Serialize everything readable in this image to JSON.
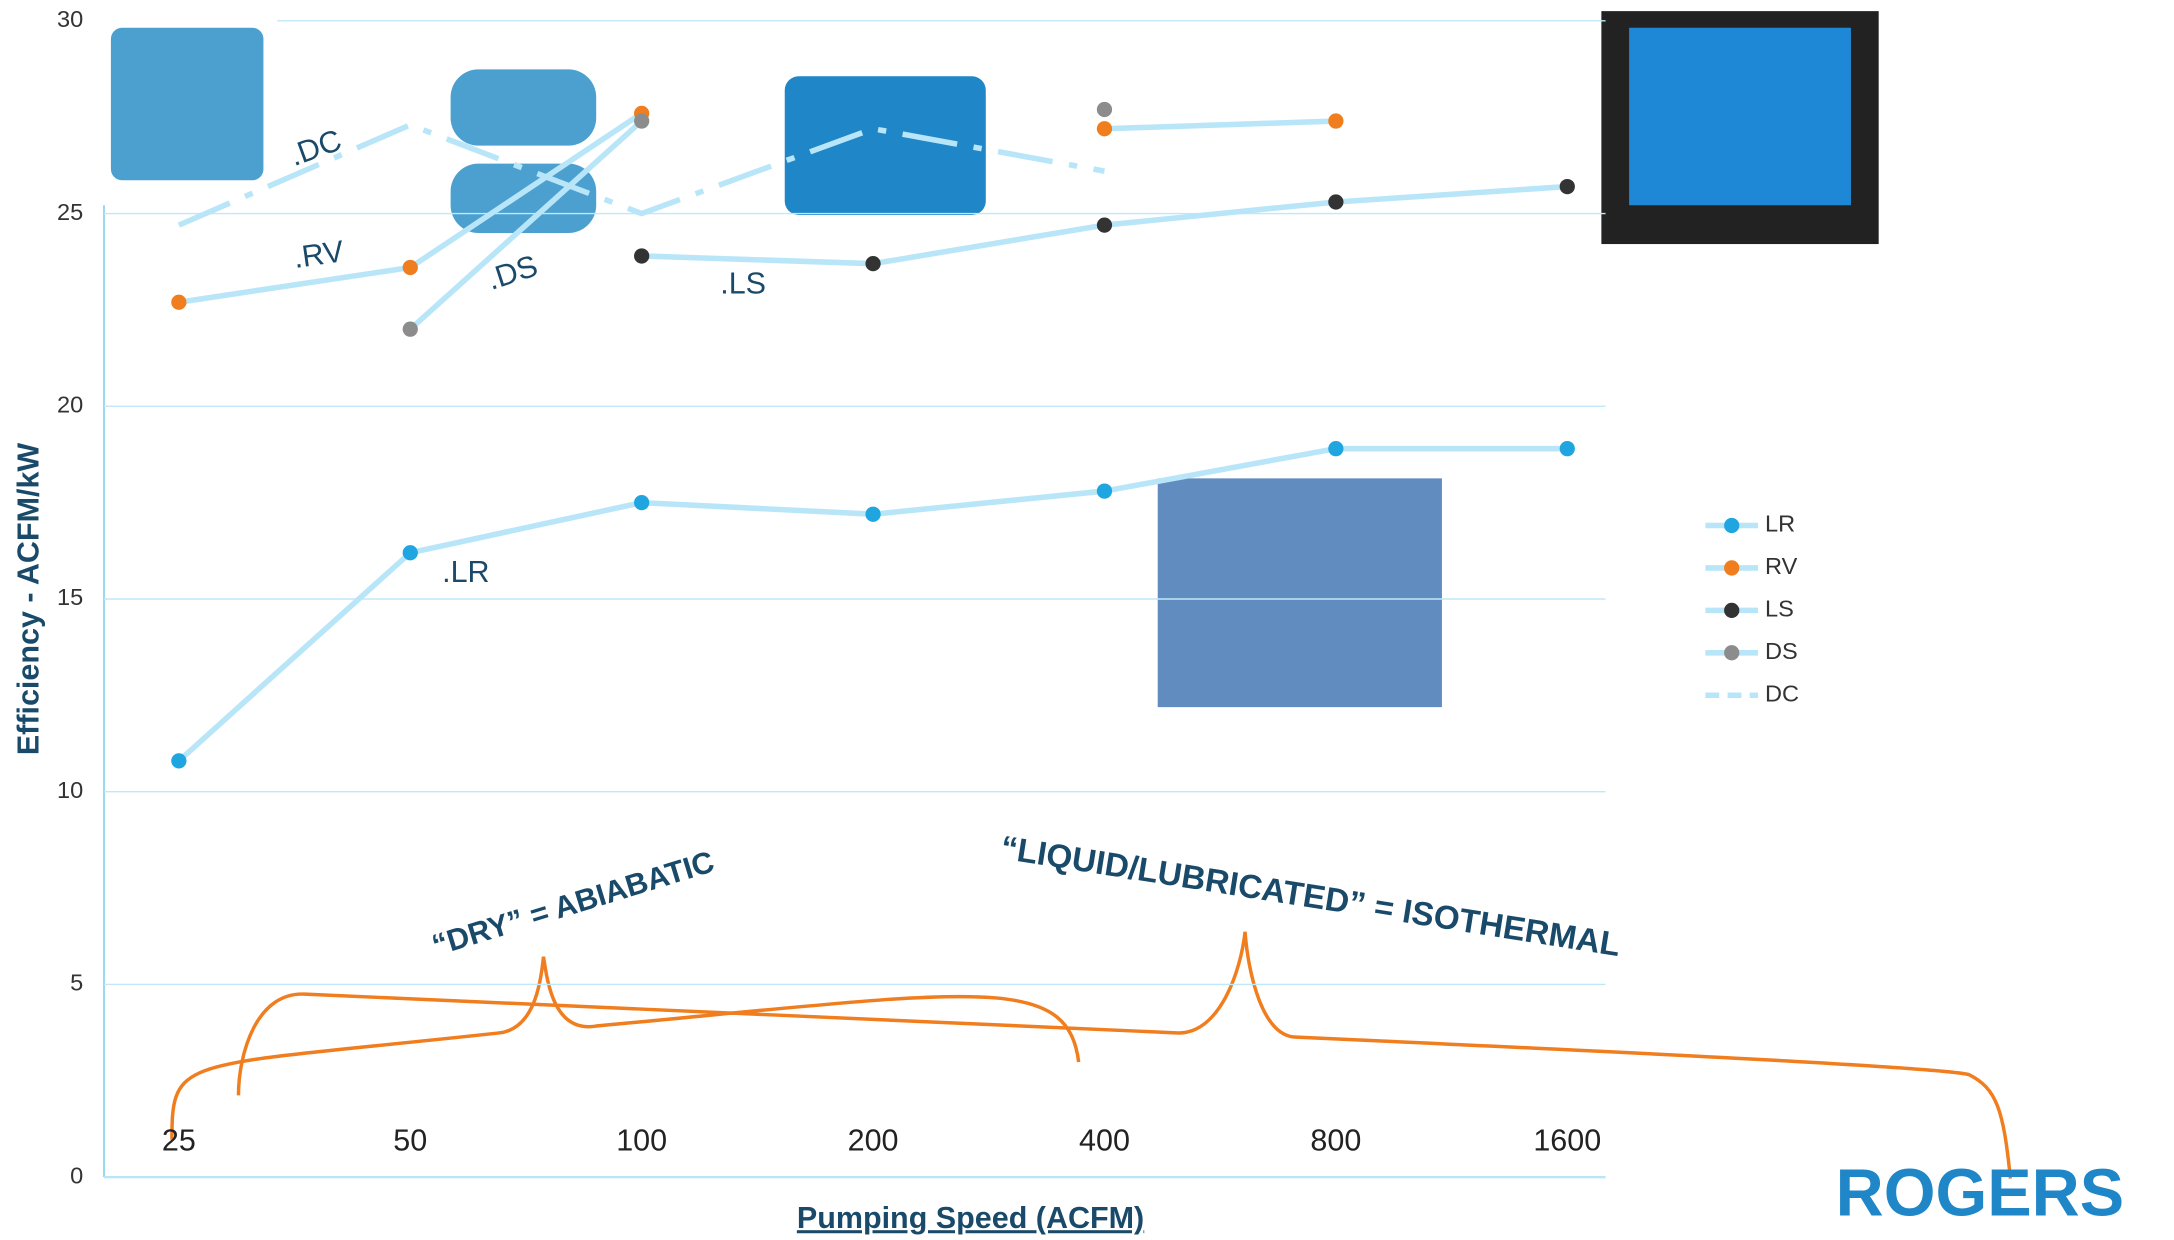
{
  "chart_data": {
    "type": "line",
    "x_label": "Pumping Speed (ACFM)",
    "y_label": "Efficiency - ACFM/kW",
    "categories": [
      "25",
      "50",
      "100",
      "200",
      "400",
      "800",
      "1600"
    ],
    "ylim": [
      0,
      30
    ],
    "yticks": [
      0,
      5,
      10,
      15,
      20,
      25,
      30
    ],
    "grid": true,
    "series": [
      {
        "name": "LR",
        "color": "#1fa5e0",
        "values": [
          10.8,
          16.2,
          17.5,
          17.2,
          17.8,
          18.9,
          18.9
        ]
      },
      {
        "name": "RV",
        "color": "#f07d1e",
        "values": [
          22.7,
          23.6,
          27.6,
          null,
          27.2,
          27.4,
          null
        ]
      },
      {
        "name": "LS",
        "color": "#333333",
        "values": [
          null,
          null,
          23.9,
          23.7,
          24.7,
          25.3,
          25.7
        ]
      },
      {
        "name": "DS",
        "color": "#8c8c8c",
        "values": [
          null,
          22.0,
          27.4,
          null,
          27.7,
          null,
          null
        ]
      },
      {
        "name": "DC",
        "color": "#c5eaf8",
        "dashed": true,
        "values": [
          24.7,
          27.3,
          25.0,
          27.2,
          26.1,
          null,
          null
        ]
      }
    ],
    "annotations": [
      ".DC",
      ".RV",
      ".DS",
      ".LS",
      ".LR",
      "“DRY” = ABIABATIC",
      "“LIQUID/LUBRICATED” = ISOTHERMAL"
    ],
    "logo": "ROGERS"
  }
}
